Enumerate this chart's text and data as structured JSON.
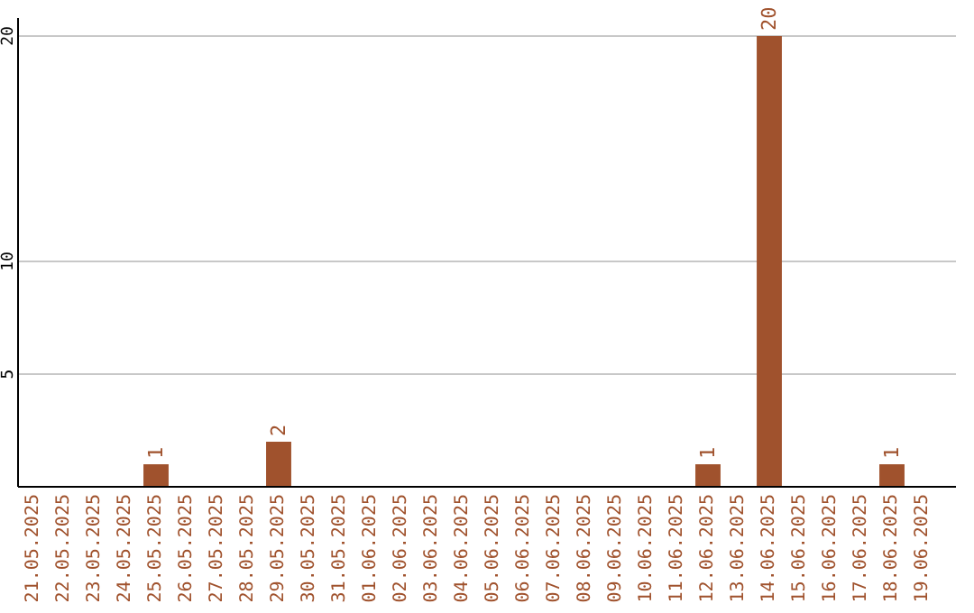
{
  "chart_data": {
    "type": "bar",
    "categories": [
      "21.05.2025",
      "22.05.2025",
      "23.05.2025",
      "24.05.2025",
      "25.05.2025",
      "26.05.2025",
      "27.05.2025",
      "28.05.2025",
      "29.05.2025",
      "30.05.2025",
      "31.05.2025",
      "01.06.2025",
      "02.06.2025",
      "03.06.2025",
      "04.06.2025",
      "05.06.2025",
      "06.06.2025",
      "07.06.2025",
      "08.06.2025",
      "09.06.2025",
      "10.06.2025",
      "11.06.2025",
      "12.06.2025",
      "13.06.2025",
      "14.06.2025",
      "15.06.2025",
      "16.06.2025",
      "17.06.2025",
      "18.06.2025",
      "19.06.2025"
    ],
    "values": [
      0,
      0,
      0,
      0,
      1,
      0,
      0,
      0,
      2,
      0,
      0,
      0,
      0,
      0,
      0,
      0,
      0,
      0,
      0,
      0,
      0,
      0,
      1,
      0,
      20,
      0,
      0,
      0,
      1,
      0
    ],
    "value_labels": [
      null,
      null,
      null,
      null,
      "1",
      null,
      null,
      null,
      "2",
      null,
      null,
      null,
      null,
      null,
      null,
      null,
      null,
      null,
      null,
      null,
      null,
      null,
      "1",
      null,
      "20",
      null,
      null,
      null,
      "1",
      null
    ],
    "color": "#a0522d",
    "ylim": [
      0,
      20.8
    ],
    "yticks": [
      5,
      10,
      20
    ],
    "grid": "y"
  }
}
